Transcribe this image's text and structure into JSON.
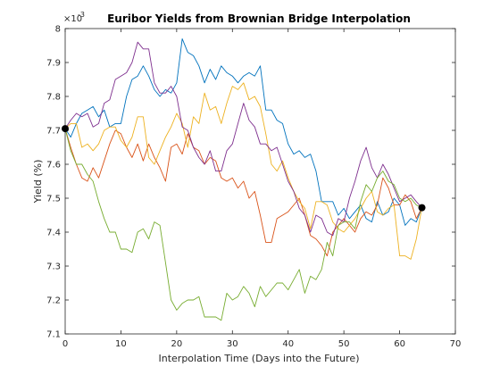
{
  "chart_data": {
    "type": "line",
    "title": "Euribor Yields from Brownian Bridge Interpolation",
    "xlabel": "Interpolation Time (Days into the Future)",
    "ylabel": "Yield (%)",
    "exponent_label": "×10",
    "exponent_power": "-3",
    "xlim": [
      0,
      70
    ],
    "ylim": [
      7.1,
      8.0
    ],
    "y_scale_factor": 0.001,
    "xticks": [
      "0",
      "10",
      "20",
      "30",
      "40",
      "50",
      "60",
      "70"
    ],
    "yticks": [
      "7.1",
      "7.2",
      "7.3",
      "7.4",
      "7.5",
      "7.6",
      "7.7",
      "7.8",
      "7.9",
      "8"
    ],
    "grid": false,
    "endpoints": {
      "x": [
        0,
        64
      ],
      "y": [
        7.705,
        7.472
      ],
      "color": "#000000"
    },
    "series": [
      {
        "color": "#0072BD",
        "x": [
          0,
          1,
          2,
          3,
          4,
          5,
          6,
          7,
          8,
          9,
          10,
          11,
          12,
          13,
          14,
          15,
          16,
          17,
          18,
          19,
          20,
          21,
          22,
          23,
          24,
          25,
          26,
          27,
          28,
          29,
          30,
          31,
          32,
          33,
          34,
          35,
          36,
          37,
          38,
          39,
          40,
          41,
          42,
          43,
          44,
          45,
          46,
          47,
          48,
          49,
          50,
          51,
          52,
          53,
          54,
          55,
          56,
          57,
          58,
          59,
          60,
          61,
          62,
          63,
          64
        ],
        "y": [
          7.705,
          7.68,
          7.72,
          7.75,
          7.76,
          7.77,
          7.74,
          7.76,
          7.71,
          7.72,
          7.72,
          7.8,
          7.85,
          7.86,
          7.89,
          7.86,
          7.82,
          7.8,
          7.82,
          7.81,
          7.84,
          7.97,
          7.93,
          7.92,
          7.89,
          7.84,
          7.88,
          7.85,
          7.89,
          7.87,
          7.86,
          7.84,
          7.86,
          7.87,
          7.86,
          7.89,
          7.76,
          7.76,
          7.73,
          7.72,
          7.66,
          7.63,
          7.64,
          7.62,
          7.63,
          7.58,
          7.49,
          7.49,
          7.49,
          7.45,
          7.47,
          7.44,
          7.46,
          7.48,
          7.44,
          7.43,
          7.49,
          7.45,
          7.46,
          7.5,
          7.48,
          7.42,
          7.44,
          7.43,
          7.472
        ]
      },
      {
        "color": "#D95319",
        "x": [
          0,
          1,
          2,
          3,
          4,
          5,
          6,
          7,
          8,
          9,
          10,
          11,
          12,
          13,
          14,
          15,
          16,
          17,
          18,
          19,
          20,
          21,
          22,
          23,
          24,
          25,
          26,
          27,
          28,
          29,
          30,
          31,
          32,
          33,
          34,
          35,
          36,
          37,
          38,
          39,
          40,
          41,
          42,
          43,
          44,
          45,
          46,
          47,
          48,
          49,
          50,
          51,
          52,
          53,
          54,
          55,
          56,
          57,
          58,
          59,
          60,
          61,
          62,
          63,
          64
        ],
        "y": [
          7.705,
          7.65,
          7.6,
          7.56,
          7.55,
          7.59,
          7.56,
          7.61,
          7.66,
          7.7,
          7.69,
          7.65,
          7.62,
          7.66,
          7.61,
          7.66,
          7.62,
          7.59,
          7.55,
          7.65,
          7.66,
          7.63,
          7.69,
          7.65,
          7.64,
          7.6,
          7.62,
          7.61,
          7.56,
          7.55,
          7.56,
          7.53,
          7.55,
          7.5,
          7.52,
          7.45,
          7.37,
          7.37,
          7.44,
          7.45,
          7.46,
          7.48,
          7.5,
          7.45,
          7.39,
          7.38,
          7.36,
          7.33,
          7.4,
          7.42,
          7.44,
          7.42,
          7.4,
          7.44,
          7.46,
          7.45,
          7.48,
          7.56,
          7.53,
          7.48,
          7.48,
          7.51,
          7.49,
          7.44,
          7.472
        ]
      },
      {
        "color": "#EDB120",
        "x": [
          0,
          1,
          2,
          3,
          4,
          5,
          6,
          7,
          8,
          9,
          10,
          11,
          12,
          13,
          14,
          15,
          16,
          17,
          18,
          19,
          20,
          21,
          22,
          23,
          24,
          25,
          26,
          27,
          28,
          29,
          30,
          31,
          32,
          33,
          34,
          35,
          36,
          37,
          38,
          39,
          40,
          41,
          42,
          43,
          44,
          45,
          46,
          47,
          48,
          49,
          50,
          51,
          52,
          53,
          54,
          55,
          56,
          57,
          58,
          59,
          60,
          61,
          62,
          63,
          64
        ],
        "y": [
          7.705,
          7.72,
          7.72,
          7.65,
          7.66,
          7.64,
          7.66,
          7.7,
          7.71,
          7.71,
          7.67,
          7.65,
          7.68,
          7.74,
          7.74,
          7.62,
          7.6,
          7.64,
          7.68,
          7.71,
          7.75,
          7.72,
          7.65,
          7.74,
          7.72,
          7.81,
          7.76,
          7.77,
          7.72,
          7.78,
          7.83,
          7.82,
          7.84,
          7.79,
          7.8,
          7.77,
          7.69,
          7.6,
          7.58,
          7.61,
          7.56,
          7.52,
          7.49,
          7.47,
          7.41,
          7.49,
          7.49,
          7.48,
          7.43,
          7.41,
          7.4,
          7.42,
          7.44,
          7.47,
          7.5,
          7.52,
          7.46,
          7.45,
          7.47,
          7.48,
          7.33,
          7.33,
          7.32,
          7.38,
          7.472
        ]
      },
      {
        "color": "#7E2F8E",
        "x": [
          0,
          1,
          2,
          3,
          4,
          5,
          6,
          7,
          8,
          9,
          10,
          11,
          12,
          13,
          14,
          15,
          16,
          17,
          18,
          19,
          20,
          21,
          22,
          23,
          24,
          25,
          26,
          27,
          28,
          29,
          30,
          31,
          32,
          33,
          34,
          35,
          36,
          37,
          38,
          39,
          40,
          41,
          42,
          43,
          44,
          45,
          46,
          47,
          48,
          49,
          50,
          51,
          52,
          53,
          54,
          55,
          56,
          57,
          58,
          59,
          60,
          61,
          62,
          63,
          64
        ],
        "y": [
          7.705,
          7.73,
          7.75,
          7.74,
          7.75,
          7.71,
          7.72,
          7.78,
          7.79,
          7.85,
          7.86,
          7.87,
          7.9,
          7.96,
          7.94,
          7.94,
          7.84,
          7.81,
          7.81,
          7.83,
          7.8,
          7.71,
          7.7,
          7.65,
          7.62,
          7.6,
          7.64,
          7.58,
          7.58,
          7.64,
          7.66,
          7.72,
          7.78,
          7.73,
          7.71,
          7.66,
          7.66,
          7.64,
          7.65,
          7.6,
          7.55,
          7.52,
          7.47,
          7.45,
          7.4,
          7.45,
          7.44,
          7.4,
          7.39,
          7.44,
          7.43,
          7.5,
          7.55,
          7.61,
          7.65,
          7.59,
          7.56,
          7.6,
          7.57,
          7.53,
          7.49,
          7.5,
          7.51,
          7.49,
          7.472
        ]
      },
      {
        "color": "#77AC30",
        "x": [
          0,
          1,
          2,
          3,
          4,
          5,
          6,
          7,
          8,
          9,
          10,
          11,
          12,
          13,
          14,
          15,
          16,
          17,
          18,
          19,
          20,
          21,
          22,
          23,
          24,
          25,
          26,
          27,
          28,
          29,
          30,
          31,
          32,
          33,
          34,
          35,
          36,
          37,
          38,
          39,
          40,
          41,
          42,
          43,
          44,
          45,
          46,
          47,
          48,
          49,
          50,
          51,
          52,
          53,
          54,
          55,
          56,
          57,
          58,
          59,
          60,
          61,
          62,
          63,
          64
        ],
        "y": [
          7.705,
          7.64,
          7.6,
          7.6,
          7.57,
          7.55,
          7.49,
          7.44,
          7.4,
          7.4,
          7.35,
          7.35,
          7.34,
          7.4,
          7.41,
          7.38,
          7.43,
          7.42,
          7.31,
          7.2,
          7.17,
          7.19,
          7.2,
          7.2,
          7.21,
          7.15,
          7.15,
          7.15,
          7.14,
          7.22,
          7.2,
          7.21,
          7.24,
          7.22,
          7.18,
          7.24,
          7.21,
          7.23,
          7.25,
          7.25,
          7.23,
          7.26,
          7.29,
          7.22,
          7.27,
          7.26,
          7.29,
          7.37,
          7.33,
          7.42,
          7.43,
          7.43,
          7.41,
          7.49,
          7.54,
          7.52,
          7.56,
          7.58,
          7.55,
          7.54,
          7.5,
          7.49,
          7.5,
          7.48,
          7.472
        ]
      }
    ]
  }
}
